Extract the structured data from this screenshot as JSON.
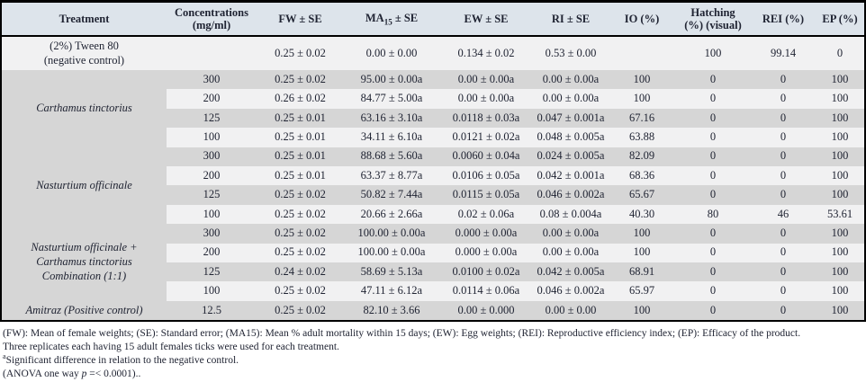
{
  "colors": {
    "header_bg": "#dde4eb",
    "row_light": "#f1f1f2",
    "row_dark": "#d6d6d6",
    "text": "#202433",
    "border": "#000000"
  },
  "table": {
    "columns": [
      {
        "label": "Treatment"
      },
      {
        "label": "Concentrations\n(mg/ml)"
      },
      {
        "label": "FW ± SE"
      },
      {
        "prefix": "MA",
        "sub": "15",
        "suffix": " ± SE"
      },
      {
        "label": "EW ± SE"
      },
      {
        "label": "RI ± SE"
      },
      {
        "label": "IO (%)"
      },
      {
        "label": "Hatching\n(%) (visual)"
      },
      {
        "label": "REI (%)"
      },
      {
        "label": "EP (%)"
      }
    ],
    "cell_keys": [
      "conc",
      "fw",
      "ma",
      "ew",
      "ri",
      "io",
      "hatching",
      "rei",
      "ep"
    ],
    "groups": [
      {
        "treatment": "(2%) Tween 80\n(negative control)",
        "italic": false,
        "rows": [
          {
            "conc": "",
            "fw": "0.25 ± 0.02",
            "ma": "0.00 ± 0.00",
            "ew": "0.134 ± 0.02",
            "ri": "0.53 ± 0.00",
            "io": "",
            "hatching": "100",
            "rei": "99.14",
            "ep": "0"
          }
        ]
      },
      {
        "treatment": "Carthamus tinctorius",
        "italic": true,
        "rows": [
          {
            "conc": "300",
            "fw": "0.25 ± 0.02",
            "ma": "95.00 ± 0.00a",
            "ew": "0.00 ± 0.00a",
            "ri": "0.00 ± 0.00a",
            "io": "100",
            "hatching": "0",
            "rei": "0",
            "ep": "100"
          },
          {
            "conc": "200",
            "fw": "0.26 ± 0.02",
            "ma": "84.77 ± 5.00a",
            "ew": "0.00 ± 0.00a",
            "ri": "0.00 ± 0.00a",
            "io": "100",
            "hatching": "0",
            "rei": "0",
            "ep": "100"
          },
          {
            "conc": "125",
            "fw": "0.25 ± 0.01",
            "ma": "63.16 ± 3.10a",
            "ew": "0.0118 ± 0.03a",
            "ri": "0.047 ± 0.001a",
            "io": "67.16",
            "hatching": "0",
            "rei": "0",
            "ep": "100"
          },
          {
            "conc": "100",
            "fw": "0.25 ± 0.01",
            "ma": "34.11 ± 6.10a",
            "ew": "0.0121 ± 0.02a",
            "ri": "0.048 ± 0.005a",
            "io": "63.88",
            "hatching": "0",
            "rei": "0",
            "ep": "100"
          }
        ]
      },
      {
        "treatment": "Nasturtium officinale",
        "italic": true,
        "rows": [
          {
            "conc": "300",
            "fw": "0.25 ± 0.01",
            "ma": "88.68 ± 5.60a",
            "ew": "0.0060 ± 0.04a",
            "ri": "0.024 ± 0.005a",
            "io": "82.09",
            "hatching": "0",
            "rei": "0",
            "ep": "100"
          },
          {
            "conc": "200",
            "fw": "0.25 ± 0.01",
            "ma": "63.37 ± 8.77a",
            "ew": "0.0106 ± 0.05a",
            "ri": "0.042 ± 0.001a",
            "io": "68.36",
            "hatching": "0",
            "rei": "0",
            "ep": "100"
          },
          {
            "conc": "125",
            "fw": "0.25 ± 0.02",
            "ma": "50.82 ± 7.44a",
            "ew": "0.0115 ± 0.05a",
            "ri": "0.046 ± 0.002a",
            "io": "65.67",
            "hatching": "0",
            "rei": "0",
            "ep": "100"
          },
          {
            "conc": "100",
            "fw": "0.25 ± 0.02",
            "ma": "20.66 ± 2.66a",
            "ew": "0.02 ± 0.06a",
            "ri": "0.08 ± 0.004a",
            "io": "40.30",
            "hatching": "80",
            "rei": "46",
            "ep": "53.61"
          }
        ]
      },
      {
        "treatment": "Nasturtium officinale +\nCarthamus tinctorius\nCombination (1:1)",
        "italic": true,
        "rows": [
          {
            "conc": "300",
            "fw": "0.25 ± 0.02",
            "ma": "100.00 ± 0.00a",
            "ew": "0.000 ± 0.00a",
            "ri": "0.00 ± 0.00a",
            "io": "100",
            "hatching": "0",
            "rei": "0",
            "ep": "100"
          },
          {
            "conc": "200",
            "fw": "0.25 ± 0.02",
            "ma": "100.00 ± 0.00a",
            "ew": "0.000 ± 0.00a",
            "ri": "0.00 ± 0.00a",
            "io": "100",
            "hatching": "0",
            "rei": "0",
            "ep": "100"
          },
          {
            "conc": "125",
            "fw": "0.24 ± 0.02",
            "ma": "58.69 ± 5.13a",
            "ew": "0.0100 ± 0.02a",
            "ri": "0.042 ± 0.005a",
            "io": "68.91",
            "hatching": "0",
            "rei": "0",
            "ep": "100"
          },
          {
            "conc": "100",
            "fw": "0.25 ± 0.02",
            "ma": "47.11 ± 6.12a",
            "ew": "0.0114 ± 0.06a",
            "ri": "0.046 ± 0.002a",
            "io": "65.97",
            "hatching": "0",
            "rei": "0",
            "ep": "100"
          }
        ]
      },
      {
        "treatment": "Amitraz (Positive control)",
        "italic": true,
        "rows": [
          {
            "conc": "12.5",
            "fw": "0.25 ± 0.02",
            "ma": "82.10 ± 3.66",
            "ew": "0.00 ± 0.000",
            "ri": "0.00 ± 0.00",
            "io": "100",
            "hatching": "0",
            "rei": "0",
            "ep": "100"
          }
        ]
      }
    ]
  },
  "footnotes": {
    "line1": "(FW): Mean of female weights; (SE): Standard error; (MA15): Mean % adult mortality within 15 days; (EW): Egg weights; (REI): Reproductive efficiency index; (EP): Efficacy of the product.",
    "line2": "Three replicates each having 15 adult females ticks were used for each treatment.",
    "line3_sup": "a",
    "line3_text": "Significant difference in relation to the negative control.",
    "line4_pre": "(ANOVA one way ",
    "line4_italic": "p",
    "line4_post": " =< 0.0001).."
  }
}
